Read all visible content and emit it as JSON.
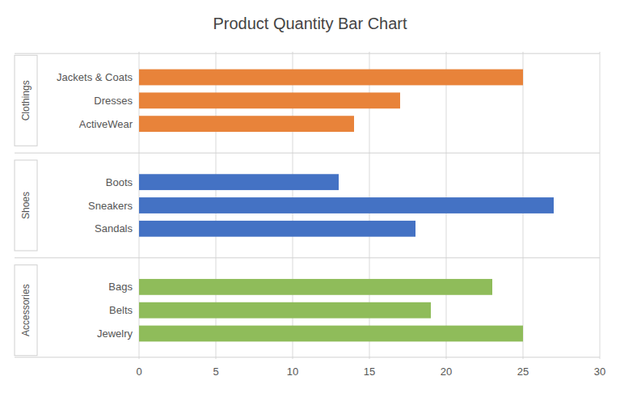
{
  "chart_data": {
    "type": "bar",
    "orientation": "horizontal",
    "title": "Product Quantity Bar Chart",
    "series": [
      {
        "name": "Clothings",
        "color": "#E8833A",
        "categories": [
          "ActiveWear",
          "Dresses",
          "Jackets & Coats"
        ],
        "values": [
          14,
          17,
          25
        ]
      },
      {
        "name": "Shoes",
        "color": "#4472C4",
        "categories": [
          "Sandals",
          "Sneakers",
          "Boots"
        ],
        "values": [
          18,
          27,
          13
        ]
      },
      {
        "name": "Accessories",
        "color": "#8FBC5A",
        "categories": [
          "Jewelry",
          "Belts",
          "Bags"
        ],
        "values": [
          25,
          19,
          23
        ]
      }
    ],
    "xlim": [
      0,
      30
    ],
    "xticks": [
      0,
      5,
      10,
      15,
      20,
      25,
      30
    ],
    "grid": true
  }
}
